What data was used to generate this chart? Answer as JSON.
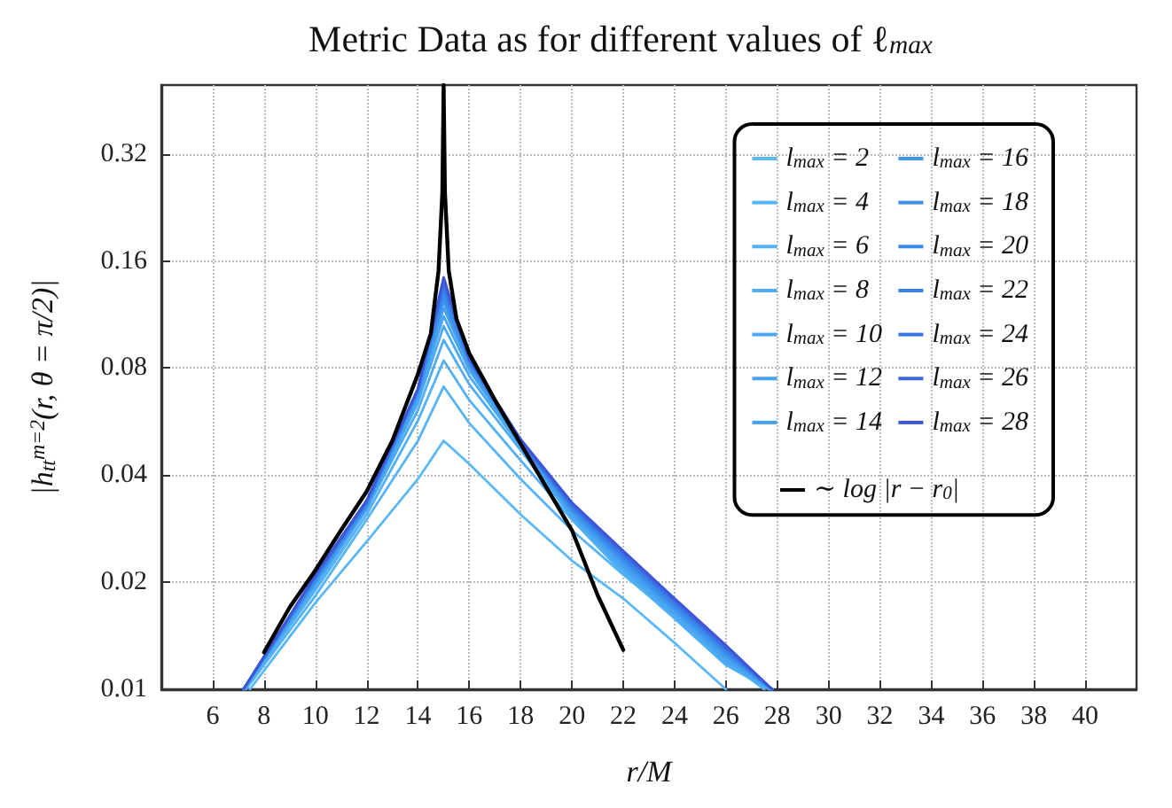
{
  "chart_data": {
    "type": "line",
    "title": "Metric Data as for different values of ℓ$_{max}$",
    "xlabel": "r/M",
    "ylabel": "|h$_{tt}$$^{m=2}$(r, θ = π/2)|",
    "log": "y",
    "grid": true,
    "legend": "top right",
    "line_style": "solid",
    "xlim": [
      4,
      42
    ],
    "xticks": [
      6,
      8,
      10,
      12,
      14,
      16,
      18,
      20,
      22,
      24,
      26,
      28,
      30,
      32,
      34,
      36,
      38,
      40
    ],
    "ylim": [
      0.01,
      0.5
    ],
    "yticks": [
      0.01,
      0.02,
      0.04,
      0.08,
      0.16,
      0.32
    ],
    "series": [
      {
        "name": "l$_{max}$ = 2",
        "color": "#5ab8f5",
        "x": [
          7.45,
          10,
          12,
          14,
          15,
          16,
          18,
          20,
          22,
          24,
          26.0
        ],
        "values": [
          0.01,
          0.0175,
          0.026,
          0.039,
          0.05,
          0.043,
          0.031,
          0.023,
          0.018,
          0.0135,
          0.01
        ]
      },
      {
        "name": "l$_{max}$ = 4",
        "color": "#55b4f5",
        "x": [
          7.3,
          10,
          12,
          14,
          15,
          16,
          18,
          20,
          22,
          24,
          26,
          27.5
        ],
        "values": [
          0.01,
          0.0183,
          0.03,
          0.05,
          0.071,
          0.056,
          0.039,
          0.028,
          0.021,
          0.016,
          0.012,
          0.01
        ]
      },
      {
        "name": "l$_{max}$ = 6",
        "color": "#52b0f4",
        "x": [
          7.25,
          10,
          12,
          14,
          15,
          16,
          18,
          20,
          22,
          24,
          26,
          27.7
        ],
        "values": [
          0.01,
          0.019,
          0.031,
          0.057,
          0.084,
          0.065,
          0.044,
          0.03,
          0.0212,
          0.0158,
          0.0117,
          0.01
        ]
      },
      {
        "name": "l$_{max}$ = 8",
        "color": "#4eacf3",
        "x": [
          7.25,
          10,
          12,
          14,
          15,
          16,
          18,
          20,
          22,
          24,
          26,
          27.7
        ],
        "values": [
          0.01,
          0.0195,
          0.032,
          0.061,
          0.096,
          0.072,
          0.047,
          0.0305,
          0.0215,
          0.016,
          0.0118,
          0.01
        ]
      },
      {
        "name": "l$_{max}$ = 10",
        "color": "#4ba8f3",
        "x": [
          7.2,
          10,
          12,
          14,
          15,
          16,
          18,
          20,
          22,
          24,
          26,
          27.75
        ],
        "values": [
          0.01,
          0.0197,
          0.0322,
          0.064,
          0.105,
          0.076,
          0.048,
          0.0308,
          0.0218,
          0.0162,
          0.012,
          0.01
        ]
      },
      {
        "name": "l$_{max}$ = 12",
        "color": "#48a4f2",
        "x": [
          7.2,
          10,
          12,
          14,
          15,
          16,
          18,
          20,
          22,
          24,
          26,
          27.75
        ],
        "values": [
          0.01,
          0.0198,
          0.0324,
          0.066,
          0.112,
          0.079,
          0.0485,
          0.0311,
          0.0221,
          0.0164,
          0.0121,
          0.01
        ]
      },
      {
        "name": "l$_{max}$ = 14",
        "color": "#45a0f1",
        "x": [
          7.2,
          10,
          12,
          14,
          15,
          16,
          18,
          20,
          22,
          24,
          26,
          27.8
        ],
        "values": [
          0.01,
          0.02,
          0.0326,
          0.067,
          0.118,
          0.081,
          0.049,
          0.0314,
          0.0224,
          0.0166,
          0.0123,
          0.01
        ]
      },
      {
        "name": "l$_{max}$ = 16",
        "color": "#3f98ee",
        "x": [
          7.2,
          10,
          12,
          14,
          15,
          16,
          18,
          20,
          22,
          24,
          26,
          27.8
        ],
        "values": [
          0.01,
          0.0201,
          0.0328,
          0.068,
          0.123,
          0.082,
          0.0493,
          0.0317,
          0.0227,
          0.0168,
          0.0124,
          0.01
        ]
      },
      {
        "name": "l$_{max}$ = 18",
        "color": "#3c90ec",
        "x": [
          7.2,
          10,
          12,
          14,
          15,
          16,
          18,
          20,
          22,
          24,
          26,
          27.8
        ],
        "values": [
          0.01,
          0.0203,
          0.033,
          0.0685,
          0.127,
          0.083,
          0.0495,
          0.032,
          0.023,
          0.017,
          0.0126,
          0.01
        ]
      },
      {
        "name": "l$_{max}$ = 20",
        "color": "#3a88ea",
        "x": [
          7.2,
          10,
          12,
          14,
          15,
          16,
          18,
          20,
          22,
          24,
          26,
          27.8
        ],
        "values": [
          0.01,
          0.0204,
          0.0332,
          0.069,
          0.131,
          0.084,
          0.0497,
          0.0323,
          0.0233,
          0.0172,
          0.0127,
          0.01
        ]
      },
      {
        "name": "l$_{max}$ = 22",
        "color": "#3980e8",
        "x": [
          7.2,
          10,
          12,
          14,
          15,
          16,
          18,
          20,
          22,
          24,
          26,
          27.8
        ],
        "values": [
          0.01,
          0.0206,
          0.0334,
          0.0695,
          0.135,
          0.0845,
          0.0499,
          0.0326,
          0.0236,
          0.0174,
          0.0129,
          0.01
        ]
      },
      {
        "name": "l$_{max}$ = 24",
        "color": "#3a74e4",
        "x": [
          7.2,
          10,
          12,
          14,
          15,
          16,
          18,
          20,
          22,
          24,
          26,
          27.8
        ],
        "values": [
          0.01,
          0.0207,
          0.0336,
          0.07,
          0.138,
          0.085,
          0.05,
          0.0329,
          0.0239,
          0.0176,
          0.013,
          0.01
        ]
      },
      {
        "name": "l$_{max}$ = 26",
        "color": "#3b66de",
        "x": [
          7.2,
          10,
          12,
          14,
          15,
          16,
          18,
          20,
          22,
          24,
          26,
          27.8
        ],
        "values": [
          0.01,
          0.0209,
          0.0338,
          0.07,
          0.141,
          0.085,
          0.0502,
          0.0332,
          0.0242,
          0.0178,
          0.0131,
          0.01
        ]
      },
      {
        "name": "l$_{max}$ = 28",
        "color": "#3d56d8",
        "x": [
          7.2,
          10,
          12,
          14,
          15,
          16,
          18,
          20,
          22,
          24,
          26,
          27.8
        ],
        "values": [
          0.01,
          0.021,
          0.034,
          0.07,
          0.144,
          0.085,
          0.0505,
          0.0335,
          0.0245,
          0.018,
          0.0133,
          0.01
        ]
      },
      {
        "name": "∼ log |r − r$_{0}$|",
        "color": "#000000",
        "x": [
          8,
          9,
          10,
          11,
          12,
          13,
          14,
          14.5,
          14.8,
          14.95,
          15,
          15.05,
          15.2,
          15.5,
          16,
          17,
          18,
          19,
          20,
          21,
          22
        ],
        "values": [
          0.0127,
          0.017,
          0.0216,
          0.028,
          0.036,
          0.05,
          0.077,
          0.1,
          0.15,
          0.25,
          0.5,
          0.25,
          0.15,
          0.11,
          0.088,
          0.065,
          0.049,
          0.037,
          0.028,
          0.0184,
          0.0129
        ]
      }
    ]
  }
}
